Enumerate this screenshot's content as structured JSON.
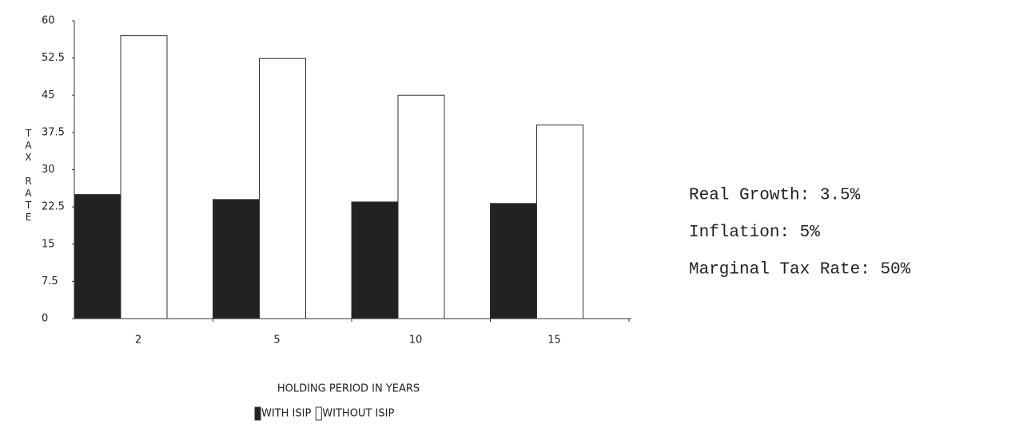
{
  "chart_data": {
    "type": "bar",
    "y_axis_label": "TAX RATE",
    "x_axis_label": "HOLDING PERIOD IN YEARS",
    "categories": [
      "2",
      "5",
      "10",
      "15"
    ],
    "series": [
      {
        "name": "WITH ISIP",
        "color": "#222222",
        "values": [
          25,
          24,
          23.5,
          23.2
        ]
      },
      {
        "name": "WITHOUT ISIP",
        "color": "#ffffff",
        "values": [
          57,
          52.4,
          45,
          39
        ]
      }
    ],
    "ylim": [
      0,
      60
    ],
    "yticks": [
      0,
      7.5,
      15,
      22.5,
      30,
      37.5,
      45,
      52.5,
      60
    ],
    "annotations": [
      "Real Growth: 3.5%",
      "Inflation: 5%",
      "Marginal Tax Rate: 50%"
    ]
  }
}
